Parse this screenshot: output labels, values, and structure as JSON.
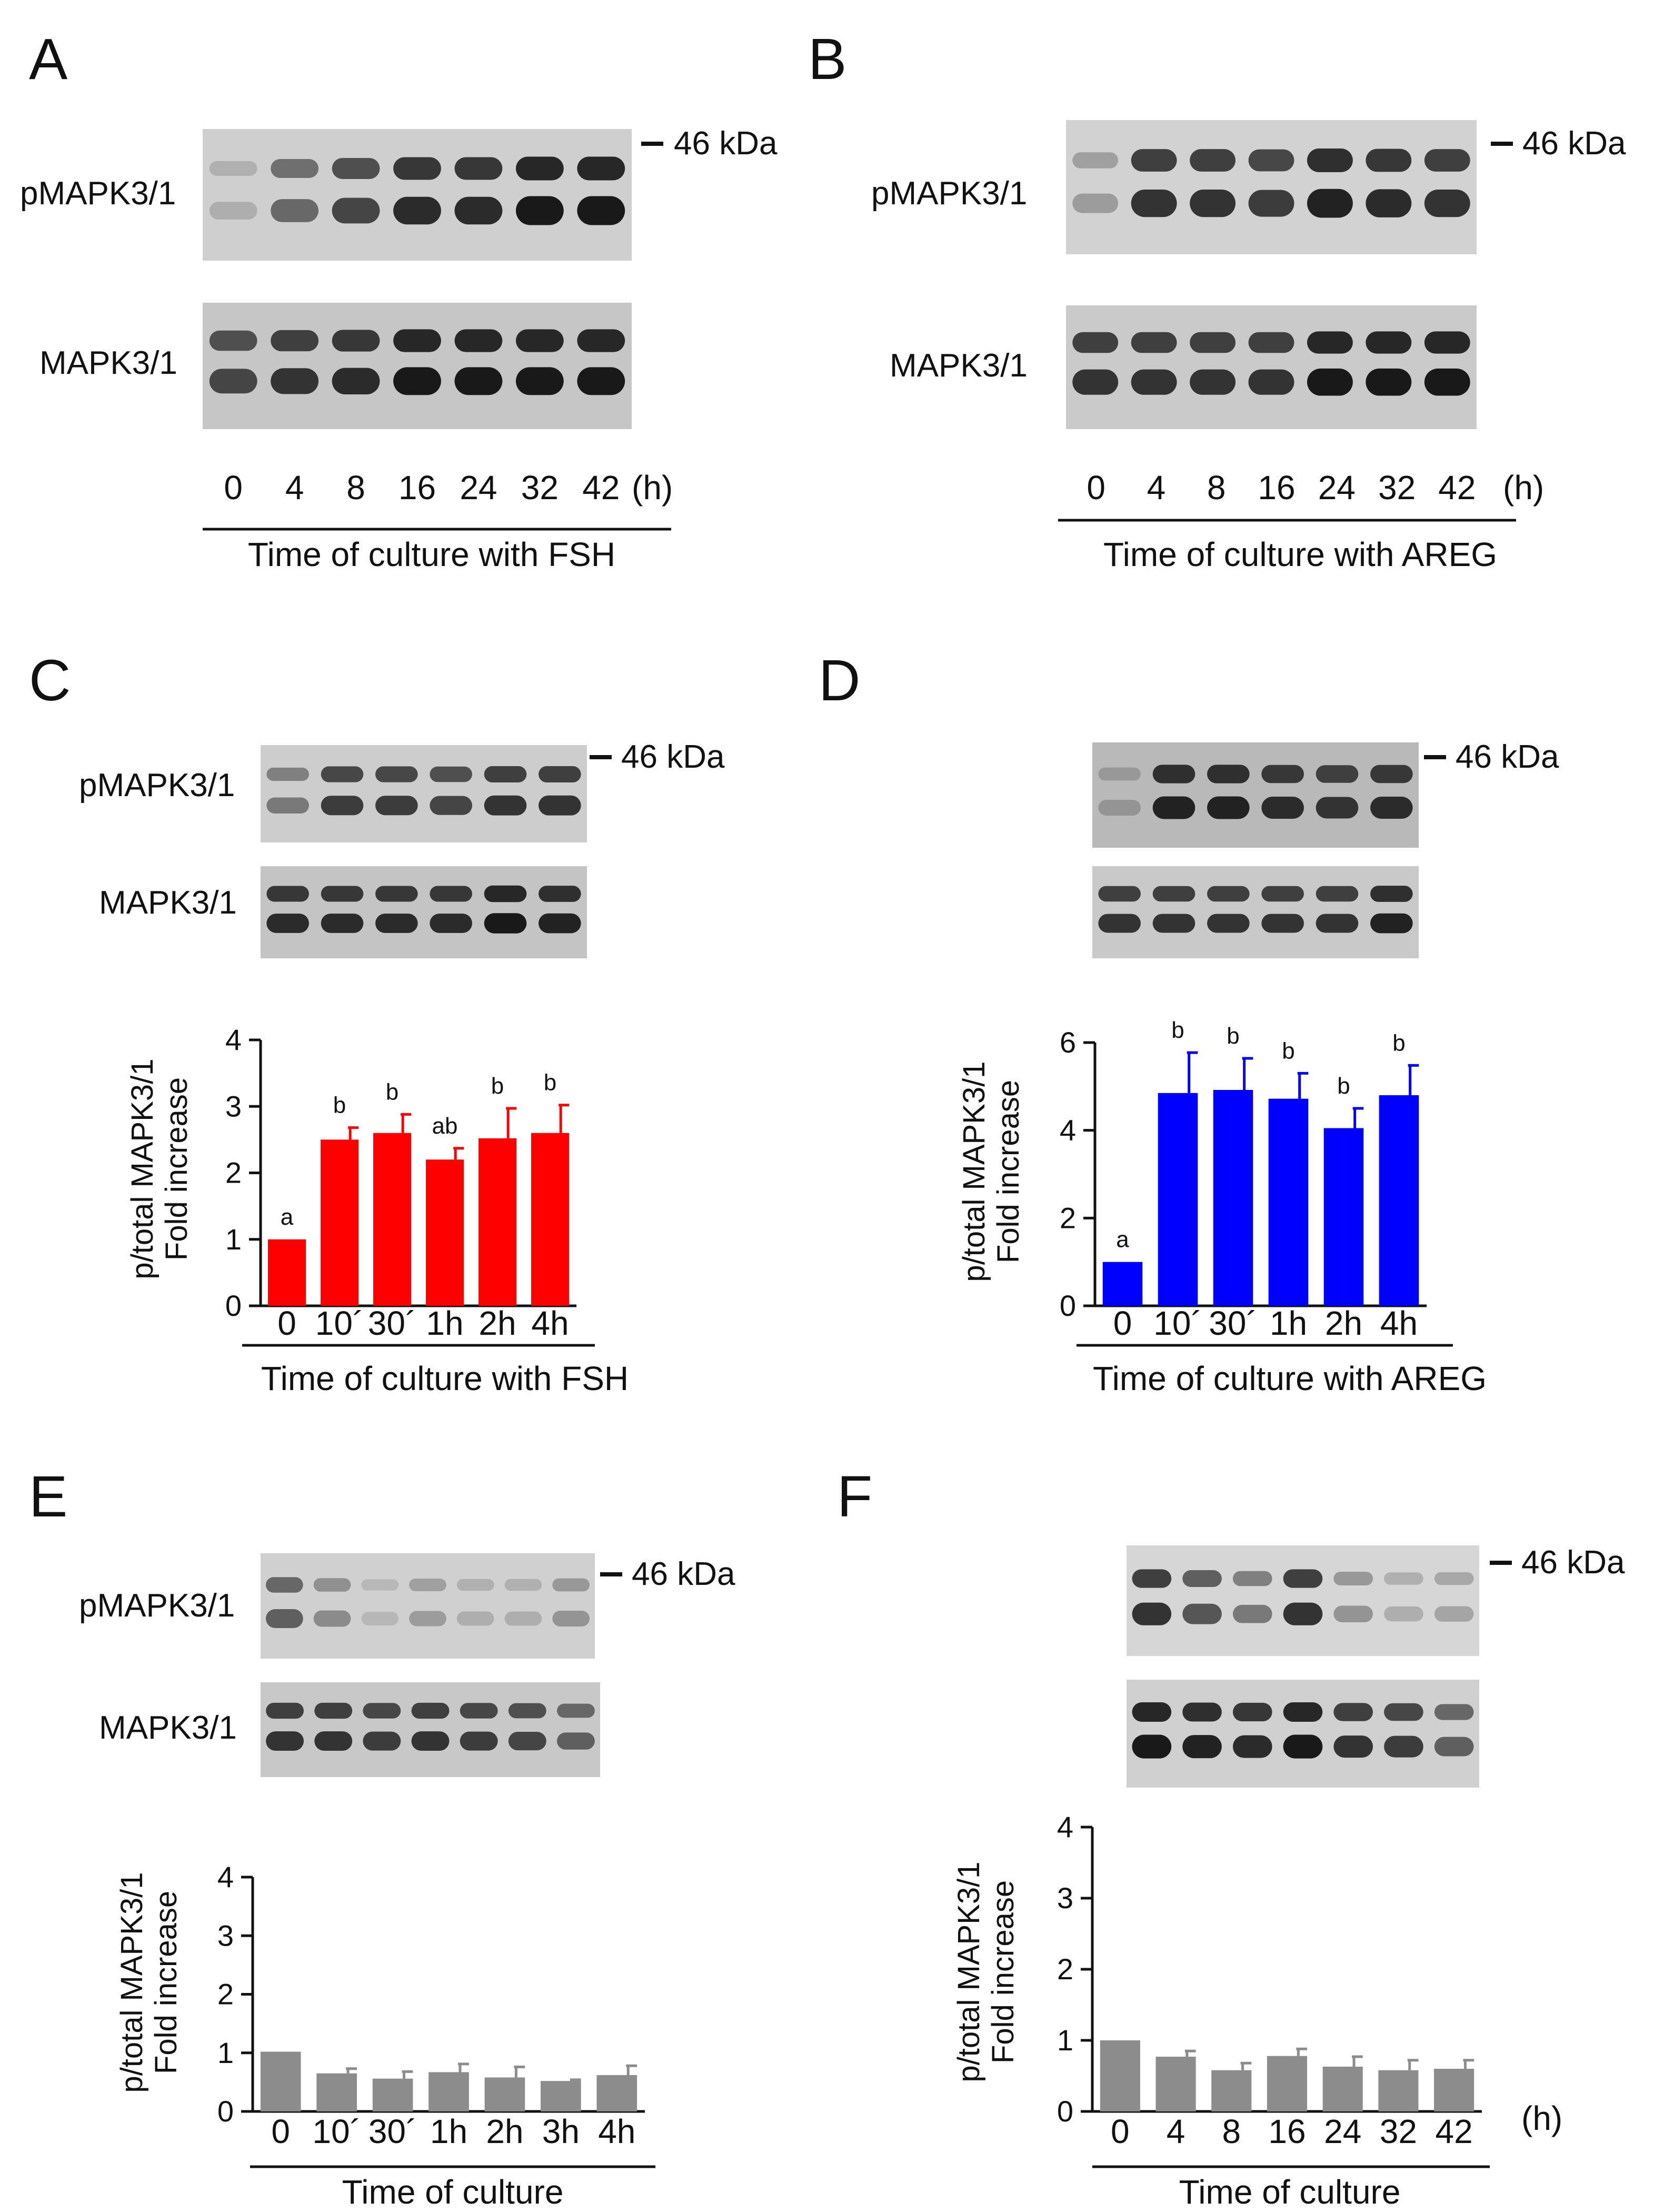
{
  "panels": [
    {
      "id": "A",
      "letter": "A",
      "kda": "46 kDa",
      "row1_label": "pMAPK3/1",
      "row2_label": "MAPK3/1",
      "lanes": [
        "0",
        "4",
        "8",
        "16",
        "24",
        "32",
        "42"
      ],
      "unit": "(h)",
      "axis_title": "Time of culture with FSH",
      "band_strength_top": [
        0.15,
        0.55,
        0.75,
        0.9,
        0.9,
        1.0,
        1.0
      ],
      "band_strength_bottom": [
        0.75,
        0.85,
        0.9,
        1.0,
        1.0,
        1.0,
        1.0
      ]
    },
    {
      "id": "B",
      "letter": "B",
      "kda": "46 kDa",
      "row1_label": "pMAPK3/1",
      "row2_label": "MAPK3/1",
      "lanes": [
        "0",
        "4",
        "8",
        "16",
        "24",
        "32",
        "42"
      ],
      "unit": "(h)",
      "axis_title": "Time of culture with AREG",
      "band_strength_top": [
        0.25,
        0.85,
        0.85,
        0.8,
        0.95,
        0.9,
        0.85
      ],
      "band_strength_bottom": [
        0.85,
        0.85,
        0.85,
        0.85,
        1.0,
        1.0,
        1.0
      ]
    },
    {
      "id": "C",
      "letter": "C",
      "kda": "46 kDa",
      "row1_label": "pMAPK3/1",
      "row2_label": "MAPK3/1",
      "lanes": [
        "0",
        "10´",
        "30´",
        "1h",
        "2h",
        "4h"
      ],
      "unit": "",
      "axis_title": "Time of culture with FSH",
      "ylabel_line1": "p/total MAPK3/1",
      "ylabel_line2": "Fold increase",
      "band_strength_top": [
        0.45,
        0.8,
        0.8,
        0.75,
        0.85,
        0.85
      ],
      "band_strength_bottom": [
        0.9,
        0.9,
        0.9,
        0.9,
        1.0,
        0.95
      ]
    },
    {
      "id": "D",
      "letter": "D",
      "kda": "46 kDa",
      "row1_label": "",
      "row2_label": "",
      "lanes": [
        "0",
        "10´",
        "30´",
        "1h",
        "2h",
        "4h"
      ],
      "unit": "",
      "axis_title": "Time of culture with AREG",
      "ylabel_line1": "p/total MAPK3/1",
      "ylabel_line2": "Fold increase",
      "band_strength_top": [
        0.3,
        0.95,
        0.95,
        0.9,
        0.85,
        0.9
      ],
      "band_strength_bottom": [
        0.85,
        0.85,
        0.85,
        0.85,
        0.85,
        0.95
      ]
    },
    {
      "id": "E",
      "letter": "E",
      "kda": "46 kDa",
      "row1_label": "pMAPK3/1",
      "row2_label": "MAPK3/1",
      "lanes": [
        "0",
        "10´",
        "30´",
        "1h",
        "2h",
        "3h",
        "4h"
      ],
      "unit": "",
      "axis_title": "Time of culture",
      "ylabel_line1": "p/total MAPK3/1",
      "ylabel_line2": "Fold increase",
      "band_strength_top": [
        0.6,
        0.35,
        0.1,
        0.25,
        0.15,
        0.15,
        0.3
      ],
      "band_strength_bottom": [
        0.85,
        0.85,
        0.8,
        0.85,
        0.8,
        0.75,
        0.6
      ]
    },
    {
      "id": "F",
      "letter": "F",
      "kda": "46 kDa",
      "row1_label": "",
      "row2_label": "",
      "lanes": [
        "0",
        "4",
        "8",
        "16",
        "24",
        "32",
        "42"
      ],
      "unit": "(h)",
      "axis_title": "Time of culture",
      "ylabel_line1": "p/total MAPK3/1",
      "ylabel_line2": "Fold increase",
      "band_strength_top": [
        0.85,
        0.65,
        0.45,
        0.85,
        0.3,
        0.15,
        0.2
      ],
      "band_strength_bottom": [
        1.0,
        0.95,
        0.9,
        1.0,
        0.85,
        0.8,
        0.6
      ]
    }
  ],
  "chart_data": [
    {
      "panel": "C",
      "type": "bar",
      "categories": [
        "0",
        "10´",
        "30´",
        "1h",
        "2h",
        "4h"
      ],
      "values": [
        1.0,
        2.5,
        2.6,
        2.2,
        2.52,
        2.6
      ],
      "errors": [
        0,
        0.18,
        0.28,
        0.17,
        0.45,
        0.42
      ],
      "labels": [
        "a",
        "b",
        "b",
        "ab",
        "b",
        "b"
      ],
      "ylim": [
        0,
        4
      ],
      "yticks": [
        0,
        1,
        2,
        3,
        4
      ],
      "color": "#ff0000",
      "xlabel": "Time of culture with FSH",
      "ylabel": "p/total MAPK3/1 Fold increase"
    },
    {
      "panel": "D",
      "type": "bar",
      "categories": [
        "0",
        "10´",
        "30´",
        "1h",
        "2h",
        "4h"
      ],
      "values": [
        1.0,
        4.85,
        4.92,
        4.72,
        4.05,
        4.8
      ],
      "errors": [
        0,
        0.92,
        0.72,
        0.58,
        0.45,
        0.68
      ],
      "labels": [
        "a",
        "b",
        "b",
        "b",
        "b",
        "b"
      ],
      "ylim": [
        0,
        6
      ],
      "yticks": [
        0,
        2,
        4,
        6
      ],
      "color": "#0000ff",
      "xlabel": "Time of culture with AREG",
      "ylabel": "p/total MAPK3/1 Fold increase"
    },
    {
      "panel": "E",
      "type": "bar",
      "categories": [
        "0",
        "10´",
        "30´",
        "1h",
        "2h",
        "3h",
        "4h"
      ],
      "values": [
        1.02,
        0.65,
        0.56,
        0.67,
        0.58,
        0.52,
        0.62
      ],
      "errors": [
        0,
        0.08,
        0.12,
        0.14,
        0.18,
        0.02,
        0.16
      ],
      "labels": [],
      "ylim": [
        0,
        4
      ],
      "yticks": [
        0,
        1,
        2,
        3,
        4
      ],
      "color": "#8c8c8c",
      "xlabel": "Time of culture",
      "ylabel": "p/total MAPK3/1 Fold increase"
    },
    {
      "panel": "F",
      "type": "bar",
      "categories": [
        "0",
        "4",
        "8",
        "16",
        "24",
        "32",
        "42"
      ],
      "values": [
        1.0,
        0.77,
        0.58,
        0.78,
        0.63,
        0.58,
        0.6
      ],
      "errors": [
        0,
        0.08,
        0.1,
        0.1,
        0.14,
        0.14,
        0.12
      ],
      "labels": [],
      "ylim": [
        0,
        4
      ],
      "yticks": [
        0,
        1,
        2,
        3,
        4
      ],
      "color": "#8c8c8c",
      "xlabel": "Time of culture",
      "ylabel": "p/total MAPK3/1 Fold increase",
      "unit": "(h)"
    }
  ]
}
